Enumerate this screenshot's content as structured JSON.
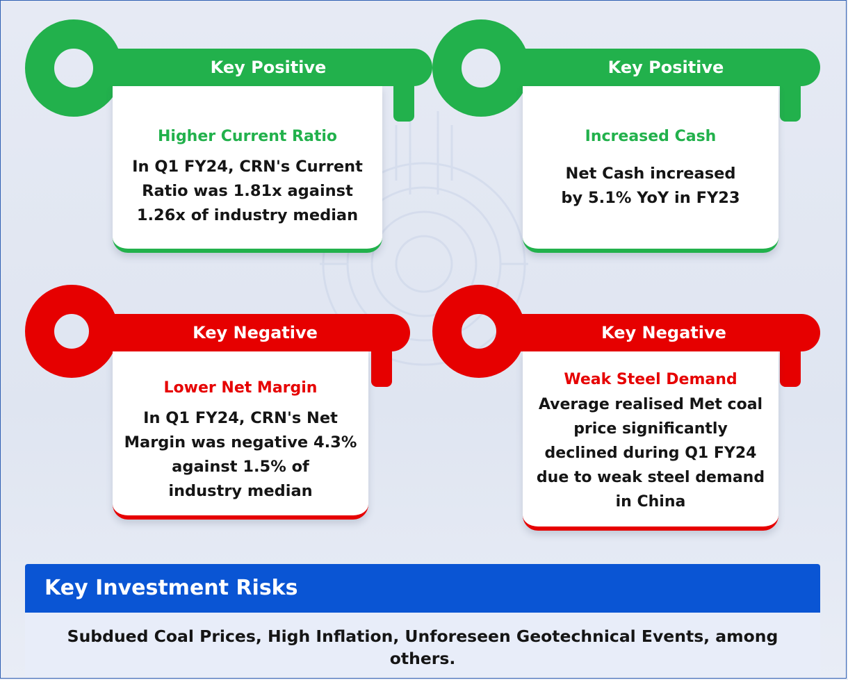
{
  "cards": [
    {
      "tag": "Key Positive",
      "subtitle": "Higher Current Ratio",
      "lines": [
        "In Q1 FY24, CRN's Current",
        "Ratio was 1.81x against",
        "1.26x of industry median"
      ],
      "accent": "#22b14c"
    },
    {
      "tag": "Key Positive",
      "subtitle": "Increased Cash",
      "lines": [
        "Net Cash increased",
        "by 5.1% YoY in FY23"
      ],
      "accent": "#22b14c"
    },
    {
      "tag": "Key Negative",
      "subtitle": "Lower Net Margin",
      "lines": [
        "In Q1 FY24, CRN's Net",
        "Margin was negative 4.3%",
        "against 1.5% of",
        "industry median"
      ],
      "accent": "#e60000"
    },
    {
      "tag": "Key Negative",
      "subtitle": "Weak Steel Demand",
      "lines": [
        "Average realised Met coal",
        "price significantly",
        "declined during Q1 FY24",
        "due to weak steel demand",
        "in China"
      ],
      "accent": "#e60000"
    }
  ],
  "risks": {
    "title": "Key Investment Risks",
    "text": "Subdued Coal Prices, High Inflation, Unforeseen Geotechnical Events, among others."
  },
  "colors": {
    "positive": "#22b14c",
    "negative": "#e60000",
    "risk_header": "#0a55d4"
  }
}
